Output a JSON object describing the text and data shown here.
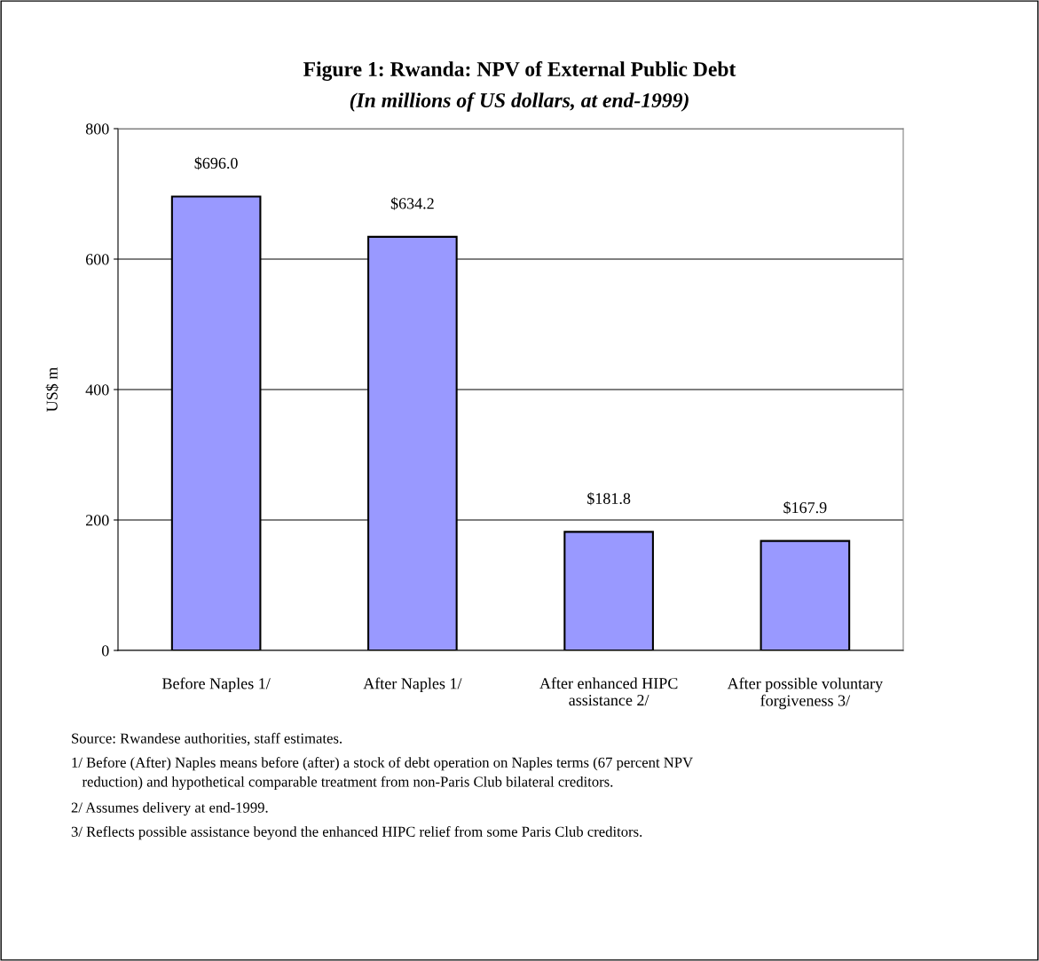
{
  "chart_data": {
    "type": "bar",
    "title": "Figure 1: Rwanda: NPV of External Public Debt",
    "subtitle": "(In millions of US dollars, at end-1999)",
    "ylabel": "US$ m",
    "categories": [
      "Before Naples 1/",
      "After Naples 1/",
      "After enhanced HIPC\nassistance 2/",
      "After possible voluntary\nforgiveness 3/"
    ],
    "values": [
      696.0,
      634.2,
      181.8,
      167.9
    ],
    "color": "#9999ff",
    "value_labels": [
      "$696.0",
      "$634.2",
      "$181.8",
      "$167.9"
    ],
    "ylim": [
      0,
      800
    ],
    "yticks": [
      0,
      200,
      400,
      600,
      800
    ],
    "grid": "y",
    "legend": false,
    "annotations": [
      "Source: Rwandese authorities, staff estimates.",
      "1/ Before (After) Naples means before (after) a stock of debt operation on Naples terms (67 percent NPV\n   reduction) and hypothetical comparable treatment from non-Paris Club bilateral creditors.",
      "2/ Assumes delivery at end-1999.",
      "3/ Reflects possible assistance beyond the enhanced HIPC relief from some Paris Club creditors."
    ]
  }
}
